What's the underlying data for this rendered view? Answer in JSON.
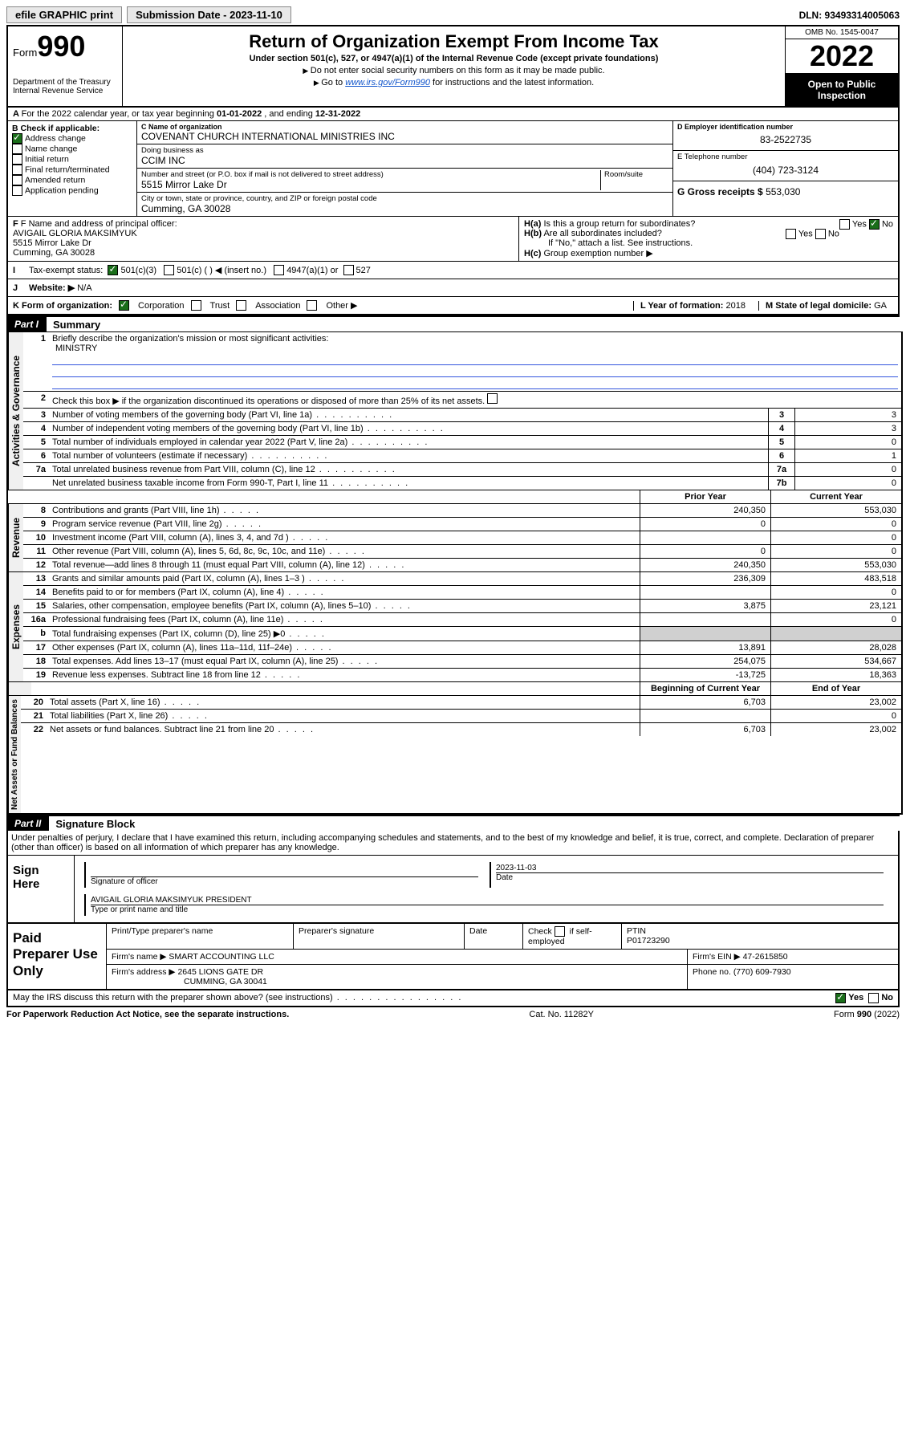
{
  "topbar": {
    "efile": "efile GRAPHIC print",
    "sub_label": "Submission Date - 2023-11-10",
    "dln_label": "DLN: 93493314005063"
  },
  "header": {
    "form_prefix": "Form",
    "form_no": "990",
    "title": "Return of Organization Exempt From Income Tax",
    "subtitle": "Under section 501(c), 527, or 4947(a)(1) of the Internal Revenue Code (except private foundations)",
    "note1": "Do not enter social security numbers on this form as it may be made public.",
    "note2_pre": "Go to ",
    "note2_link": "www.irs.gov/Form990",
    "note2_post": " for instructions and the latest information.",
    "dept": "Department of the Treasury\nInternal Revenue Service",
    "omb": "OMB No. 1545-0047",
    "year": "2022",
    "inspect": "Open to Public Inspection"
  },
  "lineA": {
    "text_pre": "For the 2022 calendar year, or tax year beginning ",
    "begin": "01-01-2022",
    "text_mid": " , and ending ",
    "end": "12-31-2022"
  },
  "boxB": {
    "label": "B Check if applicable:",
    "opts": [
      "Address change",
      "Name change",
      "Initial return",
      "Final return/terminated",
      "Amended return",
      "Application pending"
    ],
    "checked_idx": 0
  },
  "boxC": {
    "label": "C Name of organization",
    "name": "COVENANT CHURCH INTERNATIONAL MINISTRIES INC",
    "dba_label": "Doing business as",
    "dba": "CCIM INC",
    "addr_label": "Number and street (or P.O. box if mail is not delivered to street address)",
    "room_label": "Room/suite",
    "addr": "5515 Mirror Lake Dr",
    "city_label": "City or town, state or province, country, and ZIP or foreign postal code",
    "city": "Cumming, GA  30028"
  },
  "boxD": {
    "label": "D Employer identification number",
    "val": "83-2522735"
  },
  "boxE": {
    "label": "E Telephone number",
    "val": "(404) 723-3124"
  },
  "boxG": {
    "label": "G Gross receipts $",
    "val": "553,030"
  },
  "boxF": {
    "label": "F Name and address of principal officer:",
    "name": "AVIGAIL GLORIA MAKSIMYUK",
    "addr1": "5515 Mirror Lake Dr",
    "addr2": "Cumming, GA  30028"
  },
  "boxH": {
    "ha": "Is this a group return for subordinates?",
    "hb": "Are all subordinates included?",
    "hnote": "If \"No,\" attach a list. See instructions.",
    "hc": "Group exemption number ▶",
    "yes": "Yes",
    "no": "No"
  },
  "lineI": {
    "label": "Tax-exempt status:",
    "opt1": "501(c)(3)",
    "opt2": "501(c) (   ) ◀ (insert no.)",
    "opt3": "4947(a)(1) or",
    "opt4": "527"
  },
  "lineJ": {
    "label": "Website: ▶",
    "val": "N/A"
  },
  "lineK": {
    "label": "K Form of organization:",
    "opts": [
      "Corporation",
      "Trust",
      "Association",
      "Other ▶"
    ],
    "l_label": "L Year of formation:",
    "l_val": "2018",
    "m_label": "M State of legal domicile:",
    "m_val": "GA"
  },
  "part1": {
    "hdr": "Part I",
    "title": "Summary"
  },
  "summary": {
    "q1": "Briefly describe the organization's mission or most significant activities:",
    "q1_val": "MINISTRY",
    "q2": "Check this box ▶  if the organization discontinued its operations or disposed of more than 25% of its net assets.",
    "rows_a": [
      {
        "n": "3",
        "d": "Number of voting members of the governing body (Part VI, line 1a)",
        "c": "3",
        "v": "3"
      },
      {
        "n": "4",
        "d": "Number of independent voting members of the governing body (Part VI, line 1b)",
        "c": "4",
        "v": "3"
      },
      {
        "n": "5",
        "d": "Total number of individuals employed in calendar year 2022 (Part V, line 2a)",
        "c": "5",
        "v": "0"
      },
      {
        "n": "6",
        "d": "Total number of volunteers (estimate if necessary)",
        "c": "6",
        "v": "1"
      },
      {
        "n": "7a",
        "d": "Total unrelated business revenue from Part VIII, column (C), line 12",
        "c": "7a",
        "v": "0"
      },
      {
        "n": "",
        "d": "Net unrelated business taxable income from Form 990-T, Part I, line 11",
        "c": "7b",
        "v": "0"
      }
    ],
    "col_prior": "Prior Year",
    "col_curr": "Current Year",
    "rows_r": [
      {
        "n": "8",
        "d": "Contributions and grants (Part VIII, line 1h)",
        "p": "240,350",
        "c": "553,030"
      },
      {
        "n": "9",
        "d": "Program service revenue (Part VIII, line 2g)",
        "p": "0",
        "c": "0"
      },
      {
        "n": "10",
        "d": "Investment income (Part VIII, column (A), lines 3, 4, and 7d )",
        "p": "",
        "c": "0"
      },
      {
        "n": "11",
        "d": "Other revenue (Part VIII, column (A), lines 5, 6d, 8c, 9c, 10c, and 11e)",
        "p": "0",
        "c": "0"
      },
      {
        "n": "12",
        "d": "Total revenue—add lines 8 through 11 (must equal Part VIII, column (A), line 12)",
        "p": "240,350",
        "c": "553,030"
      }
    ],
    "rows_e": [
      {
        "n": "13",
        "d": "Grants and similar amounts paid (Part IX, column (A), lines 1–3 )",
        "p": "236,309",
        "c": "483,518"
      },
      {
        "n": "14",
        "d": "Benefits paid to or for members (Part IX, column (A), line 4)",
        "p": "",
        "c": "0"
      },
      {
        "n": "15",
        "d": "Salaries, other compensation, employee benefits (Part IX, column (A), lines 5–10)",
        "p": "3,875",
        "c": "23,121"
      },
      {
        "n": "16a",
        "d": "Professional fundraising fees (Part IX, column (A), line 11e)",
        "p": "",
        "c": "0"
      },
      {
        "n": "b",
        "d": "Total fundraising expenses (Part IX, column (D), line 25) ▶0",
        "p": "",
        "c": "",
        "shade": true
      },
      {
        "n": "17",
        "d": "Other expenses (Part IX, column (A), lines 11a–11d, 11f–24e)",
        "p": "13,891",
        "c": "28,028"
      },
      {
        "n": "18",
        "d": "Total expenses. Add lines 13–17 (must equal Part IX, column (A), line 25)",
        "p": "254,075",
        "c": "534,667"
      },
      {
        "n": "19",
        "d": "Revenue less expenses. Subtract line 18 from line 12",
        "p": "-13,725",
        "c": "18,363"
      }
    ],
    "col_begin": "Beginning of Current Year",
    "col_end": "End of Year",
    "rows_n": [
      {
        "n": "20",
        "d": "Total assets (Part X, line 16)",
        "p": "6,703",
        "c": "23,002"
      },
      {
        "n": "21",
        "d": "Total liabilities (Part X, line 26)",
        "p": "",
        "c": "0"
      },
      {
        "n": "22",
        "d": "Net assets or fund balances. Subtract line 21 from line 20",
        "p": "6,703",
        "c": "23,002"
      }
    ],
    "tabs": [
      "Activities & Governance",
      "Revenue",
      "Expenses",
      "Net Assets or Fund Balances"
    ]
  },
  "part2": {
    "hdr": "Part II",
    "title": "Signature Block",
    "decl": "Under penalties of perjury, I declare that I have examined this return, including accompanying schedules and statements, and to the best of my knowledge and belief, it is true, correct, and complete. Declaration of preparer (other than officer) is based on all information of which preparer has any knowledge.",
    "sign_here": "Sign Here",
    "sig_officer": "Signature of officer",
    "date": "Date",
    "date_val": "2023-11-03",
    "officer": "AVIGAIL GLORIA MAKSIMYUK  PRESIDENT",
    "type_name": "Type or print name and title"
  },
  "paid": {
    "title": "Paid Preparer Use Only",
    "h1": "Print/Type preparer's name",
    "h2": "Preparer's signature",
    "h3": "Date",
    "h4_pre": "Check",
    "h4_post": "if self-employed",
    "h5": "PTIN",
    "ptin": "P01723290",
    "firm_label": "Firm's name   ▶",
    "firm": "SMART ACCOUNTING LLC",
    "ein_label": "Firm's EIN ▶",
    "ein": "47-2615850",
    "addr_label": "Firm's address ▶",
    "addr1": "2645 LIONS GATE DR",
    "addr2": "CUMMING, GA  30041",
    "phone_label": "Phone no.",
    "phone": "(770) 609-7930",
    "discuss": "May the IRS discuss this return with the preparer shown above? (see instructions)"
  },
  "footer": {
    "left": "For Paperwork Reduction Act Notice, see the separate instructions.",
    "mid": "Cat. No. 11282Y",
    "right": "Form 990 (2022)"
  }
}
